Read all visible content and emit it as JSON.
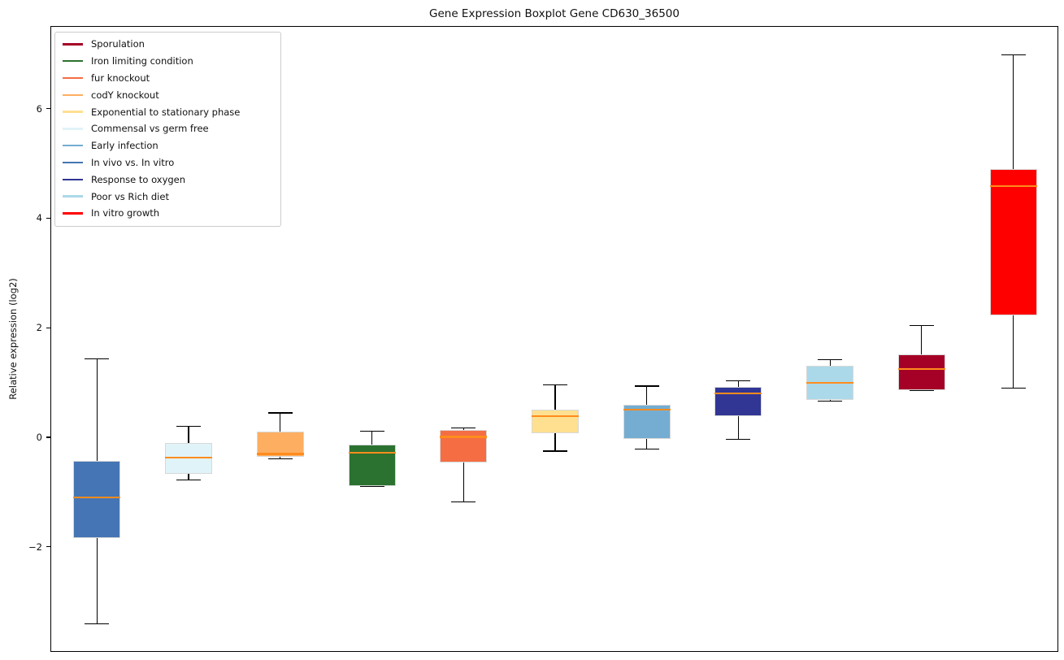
{
  "title": "Gene Expression Boxplot Gene CD630_36500",
  "chart_data": {
    "type": "boxplot",
    "title": "Gene Expression Boxplot Gene CD630_36500",
    "xlabel": "",
    "ylabel": "Relative expression (log2)",
    "ylim": [
      -3.92,
      7.51
    ],
    "yticks": [
      6,
      4,
      2,
      0,
      -2
    ],
    "ytick_labels": [
      "6",
      "4",
      "2",
      "0",
      "−2"
    ],
    "grid": false,
    "legend_position": "upper left",
    "median_color": "#ff8c1d",
    "whisker_color": "#000000",
    "box_edge_color": "#d8d8d8",
    "legend": [
      {
        "label": "Sporulation",
        "color": "#a50026"
      },
      {
        "label": "Iron limiting condition",
        "color": "#2b7230"
      },
      {
        "label": "fur knockout",
        "color": "#f46d43"
      },
      {
        "label": "codY knockout",
        "color": "#fdae61"
      },
      {
        "label": "Exponential to stationary phase",
        "color": "#fee090"
      },
      {
        "label": "Commensal vs germ free",
        "color": "#e0f3f8"
      },
      {
        "label": "Early infection",
        "color": "#74add1"
      },
      {
        "label": "In vivo vs. In vitro",
        "color": "#4575b4"
      },
      {
        "label": "Response to oxygen",
        "color": "#313695"
      },
      {
        "label": "Poor vs Rich diet",
        "color": "#abd9e9"
      },
      {
        "label": "In vitro growth",
        "color": "#ff0000"
      }
    ],
    "series": [
      {
        "name": "In vivo vs. In vitro",
        "color": "#4575b4",
        "whisker_low": -3.39,
        "q1": -1.82,
        "median": -1.08,
        "q3": -0.41,
        "whisker_high": 1.45
      },
      {
        "name": "Commensal vs germ free",
        "color": "#e0f3f8",
        "whisker_low": -0.76,
        "q1": -0.65,
        "median": -0.36,
        "q3": -0.09,
        "whisker_high": 0.21
      },
      {
        "name": "codY knockout",
        "color": "#fdae61",
        "whisker_low": -0.38,
        "q1": -0.34,
        "median": -0.29,
        "q3": 0.12,
        "whisker_high": 0.46
      },
      {
        "name": "Iron limiting condition",
        "color": "#2b7230",
        "whisker_low": -0.88,
        "q1": -0.88,
        "median": -0.27,
        "q3": -0.12,
        "whisker_high": 0.12
      },
      {
        "name": "fur knockout",
        "color": "#f46d43",
        "whisker_low": -1.17,
        "q1": -0.45,
        "median": 0.02,
        "q3": 0.14,
        "whisker_high": 0.18
      },
      {
        "name": "Exponential to stationary phase",
        "color": "#fee090",
        "whisker_low": -0.24,
        "q1": 0.09,
        "median": 0.4,
        "q3": 0.52,
        "whisker_high": 0.97
      },
      {
        "name": "Early infection",
        "color": "#74add1",
        "whisker_low": -0.2,
        "q1": -0.01,
        "median": 0.52,
        "q3": 0.61,
        "whisker_high": 0.95
      },
      {
        "name": "Response to oxygen",
        "color": "#313695",
        "whisker_low": -0.02,
        "q1": 0.4,
        "median": 0.82,
        "q3": 0.93,
        "whisker_high": 1.04
      },
      {
        "name": "Poor vs Rich diet",
        "color": "#abd9e9",
        "whisker_low": 0.67,
        "q1": 0.69,
        "median": 1.01,
        "q3": 1.32,
        "whisker_high": 1.43
      },
      {
        "name": "Sporulation",
        "color": "#a50026",
        "whisker_low": 0.87,
        "q1": 0.87,
        "median": 1.26,
        "q3": 1.53,
        "whisker_high": 2.05
      },
      {
        "name": "In vitro growth",
        "color": "#ff0000",
        "whisker_low": 0.91,
        "q1": 2.24,
        "median": 4.6,
        "q3": 4.91,
        "whisker_high": 7.0
      }
    ]
  }
}
